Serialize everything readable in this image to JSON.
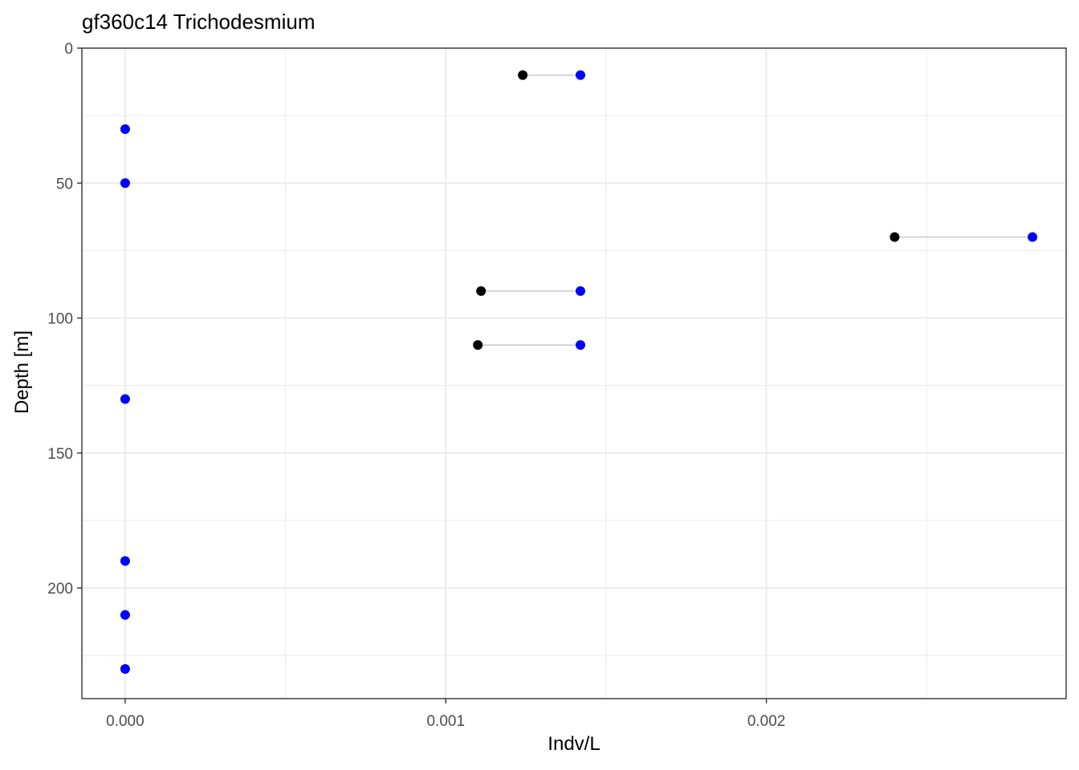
{
  "chart_data": {
    "type": "scatter",
    "title": "gf360c14 Trichodesmium",
    "xlabel": "Indv/L",
    "ylabel": "Depth [m]",
    "xlim": [
      -0.000135,
      0.002935
    ],
    "ylim": [
      0,
      241
    ],
    "y_reversed": true,
    "grid": true,
    "x_major_ticks": [
      0.0,
      0.001,
      0.002
    ],
    "x_tick_labels": [
      "0.000",
      "0.001",
      "0.002"
    ],
    "x_minor_ticks": [
      0.0005,
      0.0015,
      0.0025
    ],
    "y_major_ticks": [
      0,
      50,
      100,
      150,
      200
    ],
    "y_tick_labels": [
      "0",
      "50",
      "100",
      "150",
      "200"
    ],
    "y_minor_ticks": [
      25,
      75,
      125,
      175,
      225
    ],
    "colors": {
      "series_a": "#000000",
      "series_b": "#0000ff",
      "segment": "#cccccc"
    },
    "series": [
      {
        "points": [
          {
            "x": 0.00124,
            "y": 10
          },
          {
            "x": 0.0024,
            "y": 70
          },
          {
            "x": 0.00111,
            "y": 90
          },
          {
            "x": 0.0011,
            "y": 110
          }
        ]
      },
      {
        "points": [
          {
            "x": 0.00142,
            "y": 10
          },
          {
            "x": 0.0,
            "y": 30
          },
          {
            "x": 0.0,
            "y": 50
          },
          {
            "x": 0.00283,
            "y": 70
          },
          {
            "x": 0.00142,
            "y": 90
          },
          {
            "x": 0.00142,
            "y": 110
          },
          {
            "x": 0.0,
            "y": 130
          },
          {
            "x": 0.0,
            "y": 190
          },
          {
            "x": 0.0,
            "y": 210
          },
          {
            "x": 0.0,
            "y": 230
          }
        ]
      }
    ],
    "segments": [
      {
        "y": 10,
        "x1": 0.00124,
        "x2": 0.00142
      },
      {
        "y": 70,
        "x1": 0.0024,
        "x2": 0.00283
      },
      {
        "y": 90,
        "x1": 0.00111,
        "x2": 0.00142
      },
      {
        "y": 110,
        "x1": 0.0011,
        "x2": 0.00142
      }
    ]
  }
}
